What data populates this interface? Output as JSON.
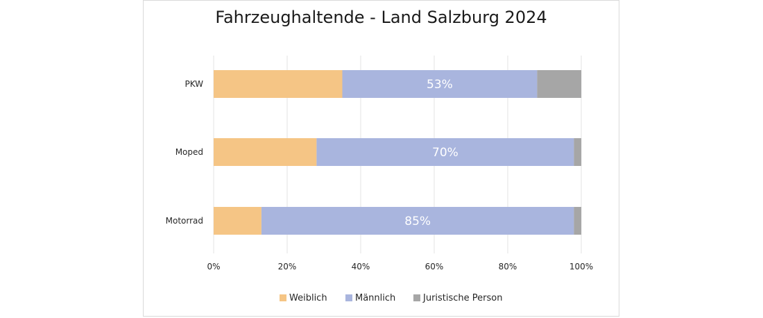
{
  "chart_data": {
    "type": "bar",
    "orientation": "horizontal",
    "stacked": true,
    "title": "Fahrzeughaltende - Land Salzburg 2024",
    "categories": [
      "PKW",
      "Moped",
      "Motorrad"
    ],
    "series": [
      {
        "name": "Weiblich",
        "values": [
          35,
          28,
          13
        ],
        "color": "#f5c585"
      },
      {
        "name": "Männlich",
        "values": [
          53,
          70,
          85
        ],
        "color": "#a9b5de",
        "data_labels": [
          "53%",
          "70%",
          "85%"
        ]
      },
      {
        "name": "Juristische Person",
        "values": [
          12,
          2,
          2
        ],
        "color": "#a6a6a6"
      }
    ],
    "xlim": [
      0,
      100
    ],
    "x_ticks": [
      "0%",
      "20%",
      "40%",
      "60%",
      "80%",
      "100%"
    ],
    "grid": true,
    "legend": "bottom"
  }
}
